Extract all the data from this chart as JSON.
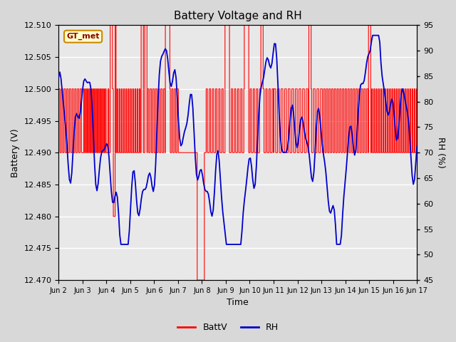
{
  "title": "Battery Voltage and RH",
  "xlabel": "Time",
  "ylabel_left": "Battery (V)",
  "ylabel_right": "RH (%)",
  "ylim_left": [
    12.47,
    12.51
  ],
  "ylim_right": [
    45,
    95
  ],
  "yticks_left": [
    12.47,
    12.475,
    12.48,
    12.485,
    12.49,
    12.495,
    12.5,
    12.505,
    12.51
  ],
  "yticks_right": [
    45,
    50,
    55,
    60,
    65,
    70,
    75,
    80,
    85,
    90,
    95
  ],
  "xtick_labels": [
    "Jun 2",
    "Jun 3",
    "Jun 4",
    "Jun 5",
    "Jun 6",
    "Jun 7",
    "Jun 8",
    "Jun 9",
    "Jun 10",
    "Jun 11",
    "Jun 12",
    "Jun 13",
    "Jun 14",
    "Jun 15",
    "Jun 16",
    "Jun 17"
  ],
  "xlim": [
    0,
    15
  ],
  "bg_color": "#d8d8d8",
  "plot_bg_color": "#e8e8e8",
  "batt_color": "#ff0000",
  "rh_color": "#0000cc",
  "legend_label_batt": "BattV",
  "legend_label_rh": "RH",
  "watermark_text": "GT_met",
  "watermark_bg": "#ffffcc",
  "watermark_border": "#cc8800",
  "title_fontsize": 11,
  "axis_fontsize": 9,
  "tick_fontsize": 8
}
